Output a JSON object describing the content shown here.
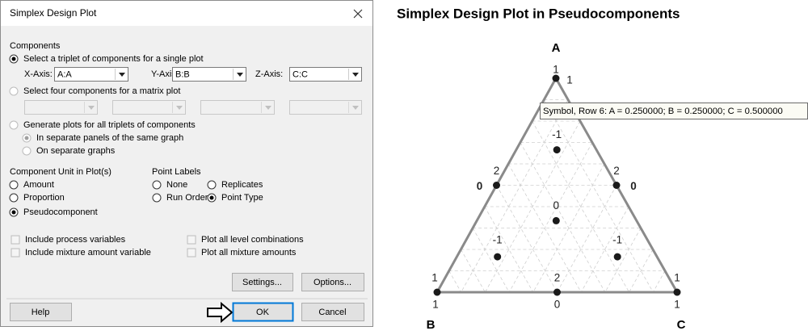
{
  "dialog": {
    "title": "Simplex Design Plot",
    "components": {
      "heading": "Components",
      "single": {
        "label": "Select a triplet of components for a single plot",
        "checked": true,
        "axes": [
          {
            "label": "X-Axis:",
            "value": "A:A"
          },
          {
            "label": "Y-Axis:",
            "value": "B:B"
          },
          {
            "label": "Z-Axis:",
            "value": "C:C"
          }
        ]
      },
      "matrix": {
        "label": "Select four components for a matrix plot",
        "checked": false,
        "enabled": false
      },
      "all": {
        "label": "Generate plots for all triplets of components",
        "checked": false,
        "enabled": false,
        "options": [
          {
            "label": "In separate panels of the same graph",
            "checked": true
          },
          {
            "label": "On separate graphs",
            "checked": false
          }
        ]
      }
    },
    "unit": {
      "heading": "Component Unit in Plot(s)",
      "options": [
        {
          "label": "Amount",
          "checked": false
        },
        {
          "label": "Proportion",
          "checked": false
        },
        {
          "label": "Pseudocomponent",
          "checked": true
        }
      ]
    },
    "point_labels": {
      "heading": "Point Labels",
      "options": [
        {
          "label": "None",
          "checked": false
        },
        {
          "label": "Run Order",
          "checked": false
        },
        {
          "label": "Replicates",
          "checked": false
        },
        {
          "label": "Point Type",
          "checked": true
        }
      ]
    },
    "checkboxes": [
      "Include process variables",
      "Include mixture amount variable",
      "Plot all level combinations",
      "Plot all mixture amounts"
    ],
    "buttons": {
      "settings": "Settings...",
      "options": "Options...",
      "help": "Help",
      "ok": "OK",
      "cancel": "Cancel"
    }
  },
  "chart_data": {
    "type": "ternary",
    "title": "Simplex Design Plot in Pseudocomponents",
    "vertices": [
      "A",
      "B",
      "C"
    ],
    "grid": true,
    "color": "#1a1a1a",
    "edge_color": "#8a8a8a",
    "points": [
      {
        "a": 1,
        "b": 0,
        "c": 0,
        "labels": [
          "1",
          "1"
        ]
      },
      {
        "a": 0,
        "b": 1,
        "c": 0,
        "labels": [
          "1",
          "1"
        ]
      },
      {
        "a": 0,
        "b": 0,
        "c": 1,
        "labels": [
          "1",
          "1"
        ]
      },
      {
        "a": 0.5,
        "b": 0.5,
        "c": 0,
        "labels": [
          "2",
          "0"
        ]
      },
      {
        "a": 0.5,
        "b": 0,
        "c": 0.5,
        "labels": [
          "2",
          "0"
        ]
      },
      {
        "a": 0,
        "b": 0.5,
        "c": 0.5,
        "labels": [
          "2",
          "0"
        ]
      },
      {
        "a": 0.333,
        "b": 0.333,
        "c": 0.333,
        "labels": [
          "0"
        ]
      },
      {
        "a": 0.667,
        "b": 0.167,
        "c": 0.167,
        "labels": [
          "-1"
        ]
      },
      {
        "a": 0.167,
        "b": 0.667,
        "c": 0.167,
        "labels": [
          "-1"
        ]
      },
      {
        "a": 0.167,
        "b": 0.167,
        "c": 0.667,
        "labels": [
          "-1"
        ]
      }
    ],
    "tooltip": "Symbol, Row 6: A = 0.250000; B = 0.250000; C = 0.500000"
  }
}
